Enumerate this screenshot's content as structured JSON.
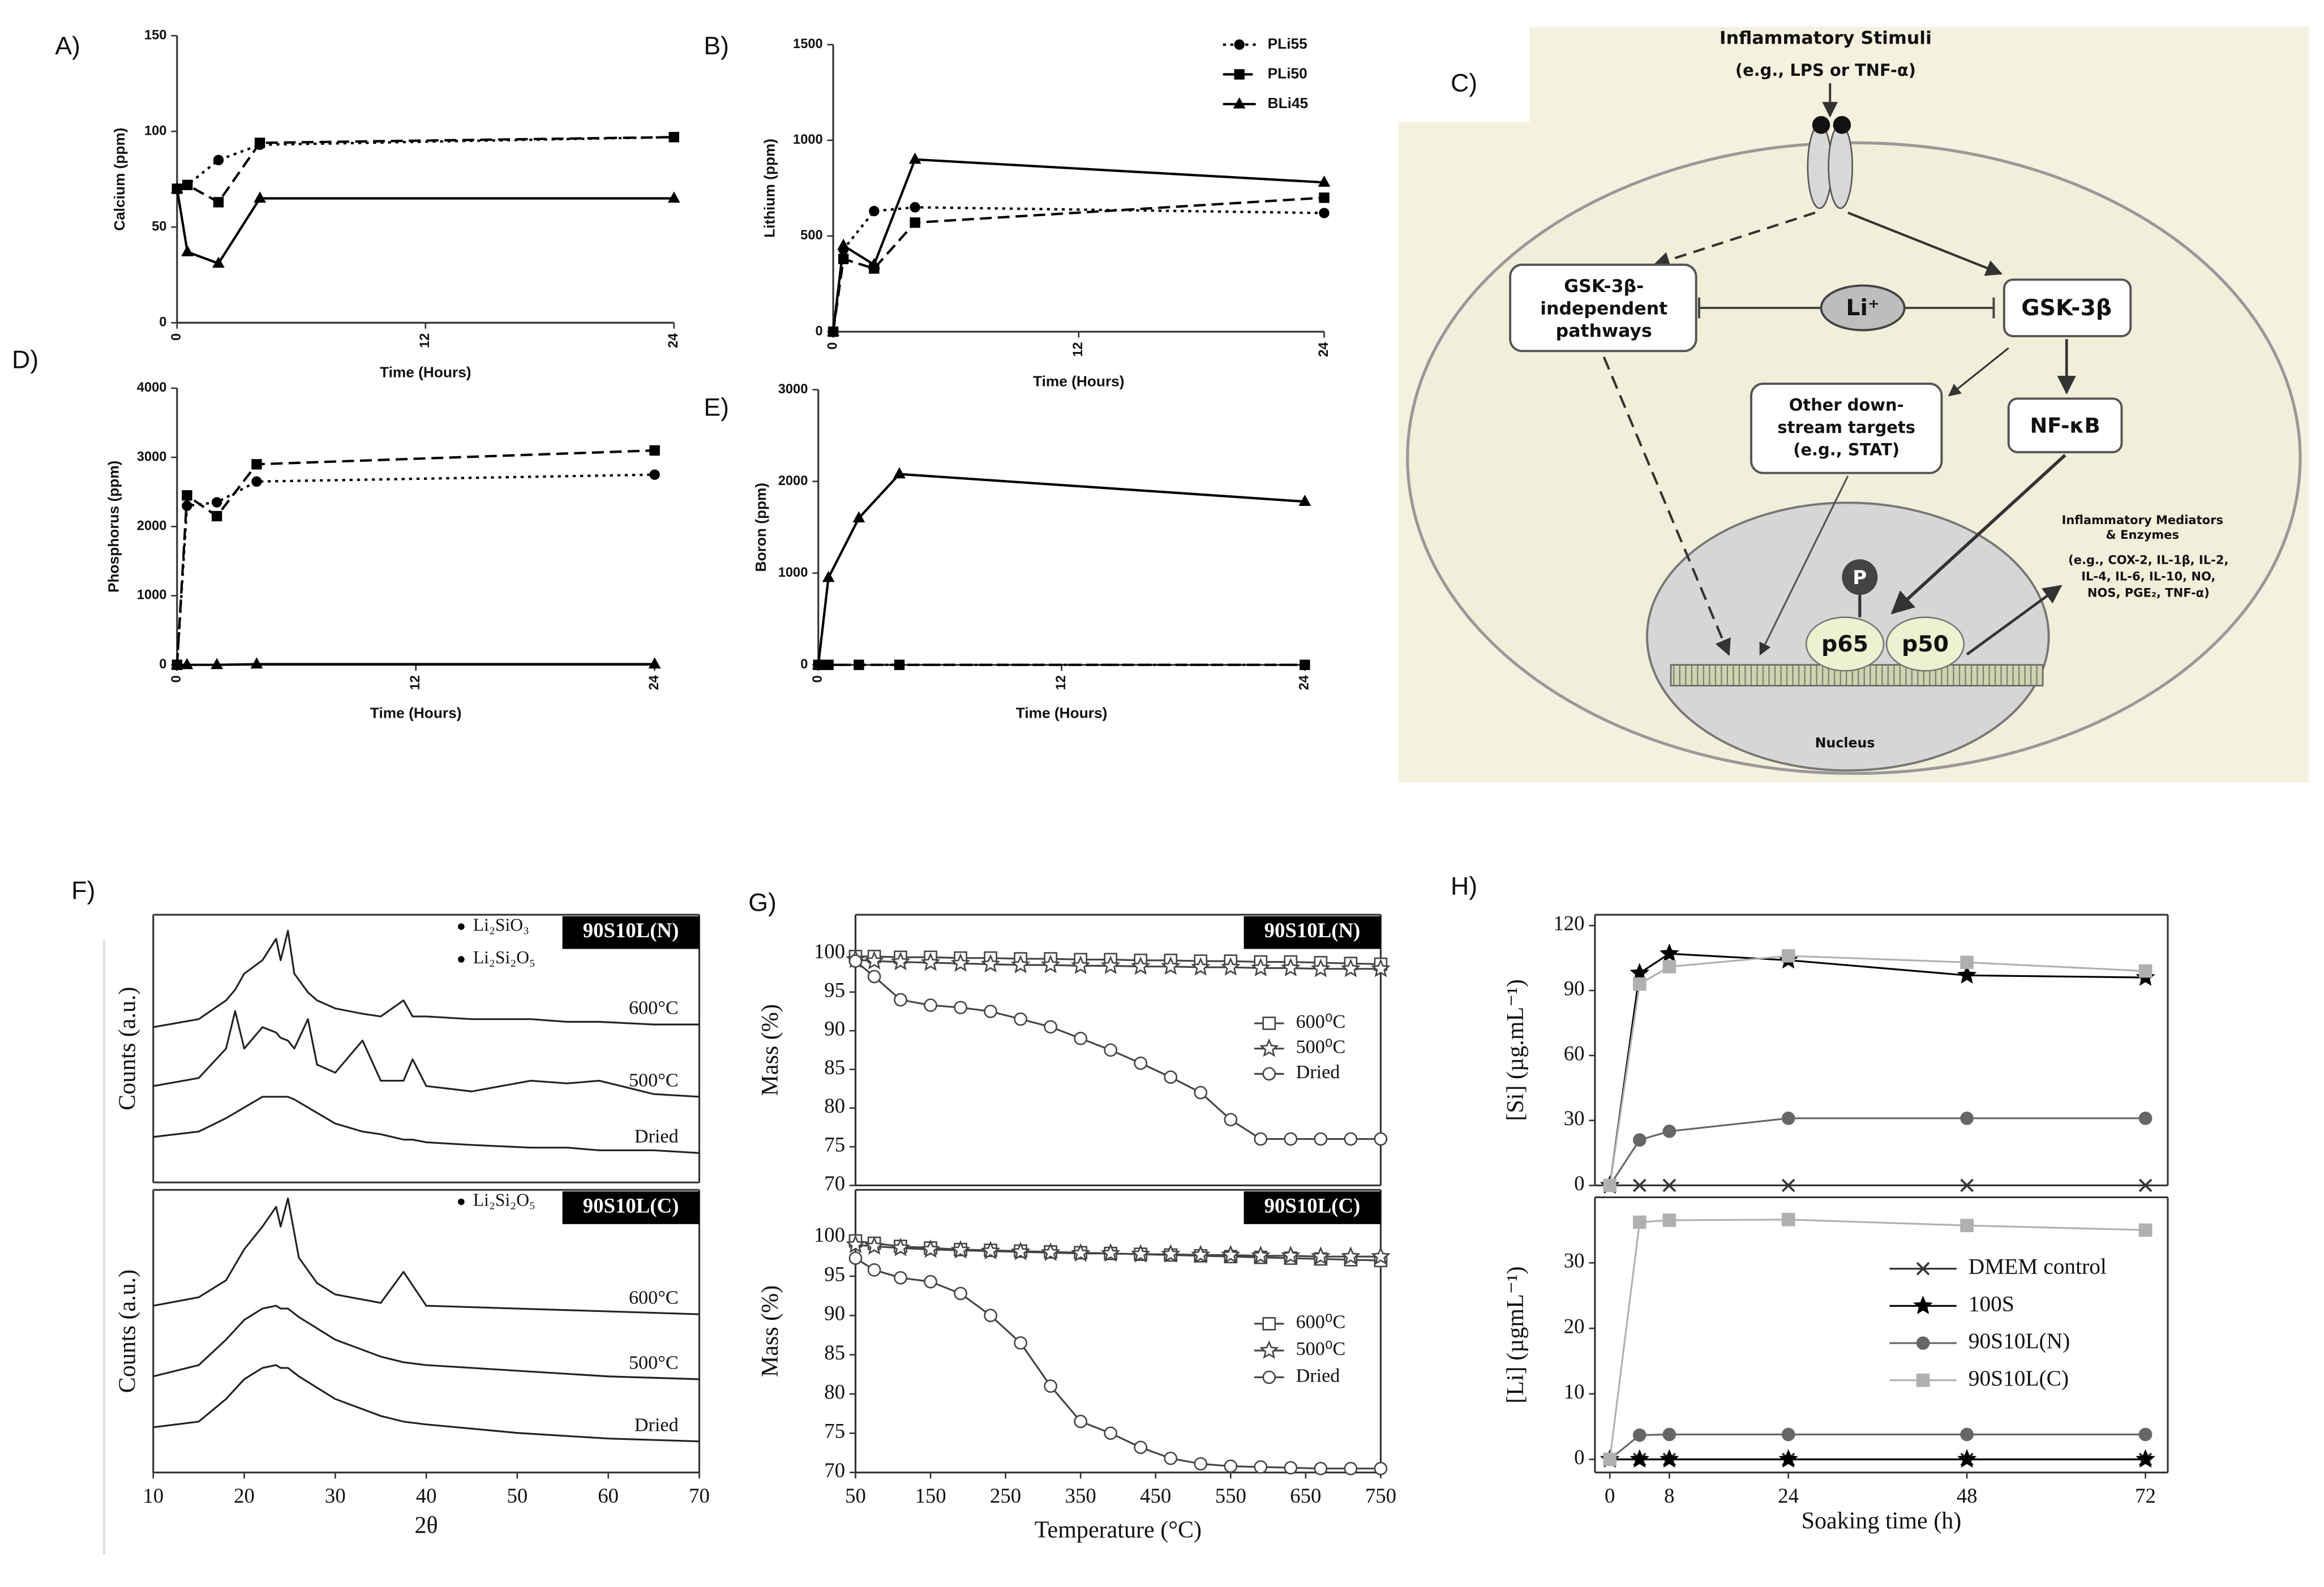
{
  "panel_labels": [
    "A)",
    "B)",
    "C)",
    "D)",
    "E)",
    "F)",
    "G)",
    "H)"
  ],
  "diagram": {
    "stimulus_title": "Inflammatory Stimuli",
    "stimulus_example": "(e.g., LPS or TNF-α)",
    "independent_pathways": [
      "GSK-3β-",
      "independent",
      "pathways"
    ],
    "lithium": "Li⁺",
    "gsk3b": "GSK-3β",
    "other_targets": [
      "Other down-",
      "stream targets",
      "(e.g., STAT)"
    ],
    "nfkb": "NF-κB",
    "mediators": [
      "Inflammatory Mediators",
      "& Enzymes",
      "(e.g., COX-2, IL-1β, IL-2,",
      "IL-4, IL-6, IL-10, NO,",
      "NOS, PGE₂, TNF-α)"
    ],
    "phospho": "P",
    "p65": "p65",
    "p50": "p50",
    "nucleus": "Nucleus"
  },
  "chart_data": [
    {
      "type": "line",
      "y_label": "Calcium (ppm)",
      "x_label": "Time (Hours)",
      "x": [
        0,
        0.5,
        2,
        4,
        24
      ],
      "xlim": [
        0,
        24
      ],
      "xticks": [
        0,
        12,
        24
      ],
      "ylim": [
        0,
        150
      ],
      "yticks": [
        0,
        50,
        100,
        150
      ],
      "series": [
        {
          "name": "PLi55",
          "color": "#000000",
          "line_style": "dotted",
          "marker": "circle",
          "values": [
            70,
            72,
            85,
            93,
            97
          ]
        },
        {
          "name": "PLi50",
          "color": "#000000",
          "line_style": "dashed",
          "marker": "square",
          "values": [
            70,
            72,
            63,
            94,
            97
          ]
        },
        {
          "name": "BLi45",
          "color": "#000000",
          "line_style": "solid",
          "marker": "triangle",
          "values": [
            70,
            37,
            31,
            65,
            65
          ]
        }
      ]
    },
    {
      "type": "line",
      "y_label": "Lithium (ppm)",
      "x_label": "Time (Hours)",
      "legend": "top-right",
      "x": [
        0,
        0.5,
        2,
        4,
        24
      ],
      "xlim": [
        0,
        24
      ],
      "xticks": [
        0,
        12,
        24
      ],
      "ylim": [
        0,
        1500
      ],
      "yticks": [
        0,
        500,
        1000,
        1500
      ],
      "series": [
        {
          "name": "PLi55",
          "color": "#000000",
          "line_style": "dotted",
          "marker": "circle",
          "values": [
            0,
            430,
            630,
            650,
            620
          ]
        },
        {
          "name": "PLi50",
          "color": "#000000",
          "line_style": "dashed",
          "marker": "square",
          "values": [
            0,
            380,
            330,
            570,
            700
          ]
        },
        {
          "name": "BLi45",
          "color": "#000000",
          "line_style": "solid",
          "marker": "triangle",
          "values": [
            0,
            450,
            350,
            900,
            780
          ]
        }
      ]
    },
    {
      "type": "line",
      "y_label": "Phosphorus (ppm)",
      "x_label": "Time (Hours)",
      "x": [
        0,
        0.5,
        2,
        4,
        24
      ],
      "xlim": [
        0,
        24
      ],
      "xticks": [
        0,
        12,
        24
      ],
      "ylim": [
        0,
        4000
      ],
      "yticks": [
        0,
        1000,
        2000,
        3000,
        4000
      ],
      "series": [
        {
          "name": "PLi55",
          "color": "#000000",
          "line_style": "dotted",
          "marker": "circle",
          "values": [
            0,
            2300,
            2350,
            2650,
            2750
          ]
        },
        {
          "name": "PLi50",
          "color": "#000000",
          "line_style": "dashed",
          "marker": "square",
          "values": [
            0,
            2450,
            2150,
            2900,
            3100
          ]
        },
        {
          "name": "BLi45",
          "color": "#000000",
          "line_style": "solid",
          "marker": "triangle",
          "values": [
            0,
            0,
            0,
            10,
            10
          ]
        }
      ]
    },
    {
      "type": "line",
      "y_label": "Boron (ppm)",
      "x_label": "Time (Hours)",
      "x": [
        0,
        0.5,
        2,
        4,
        24
      ],
      "xlim": [
        0,
        24
      ],
      "xticks": [
        0,
        12,
        24
      ],
      "ylim": [
        0,
        3000
      ],
      "yticks": [
        0,
        1000,
        2000,
        3000
      ],
      "series": [
        {
          "name": "PLi55",
          "color": "#000000",
          "line_style": "dotted",
          "marker": "circle",
          "values": [
            0,
            0,
            0,
            0,
            0
          ]
        },
        {
          "name": "PLi50",
          "color": "#000000",
          "line_style": "dashed",
          "marker": "square",
          "values": [
            0,
            0,
            0,
            0,
            0
          ]
        },
        {
          "name": "BLi45",
          "color": "#000000",
          "line_style": "solid",
          "marker": "triangle",
          "values": [
            0,
            950,
            1600,
            2080,
            1780
          ]
        }
      ]
    },
    {
      "type": "line",
      "y_label": "Counts (a.u.)",
      "tag": "90S10L(N)",
      "phase_legend": [
        "Li₂SiO₃",
        "Li₂Si₂O₅"
      ],
      "legend": "inline",
      "x": [
        10,
        15,
        18,
        19,
        20,
        22,
        23.5,
        24,
        24.8,
        25.5,
        27,
        28,
        30,
        33,
        35,
        37.5,
        38.5,
        40,
        45,
        51.5,
        55.5,
        59,
        65,
        70
      ],
      "xlim": [
        10,
        70
      ],
      "ylim": [
        0,
        100
      ],
      "series": [
        {
          "name": "600°C",
          "color": "#222222",
          "values": [
            58,
            61,
            68,
            72,
            78,
            83,
            91,
            83,
            94,
            78,
            71,
            68,
            65,
            63,
            62,
            68,
            62,
            62,
            61,
            61,
            60,
            60,
            59,
            59
          ]
        },
        {
          "name": "500°C",
          "color": "#222222",
          "values": [
            36,
            39,
            50,
            64,
            50,
            58,
            56,
            54,
            53,
            50,
            61,
            44,
            41,
            53,
            38,
            38,
            46,
            36,
            34,
            38,
            37,
            38,
            33,
            32
          ]
        },
        {
          "name": "Dried",
          "color": "#222222",
          "values": [
            17,
            19,
            24,
            26,
            28,
            32,
            32,
            32,
            32,
            31,
            28,
            26,
            22,
            19,
            18,
            16,
            16,
            15,
            14,
            13,
            13,
            12,
            12,
            11
          ]
        }
      ]
    },
    {
      "type": "line",
      "y_label": "Counts (a.u.)",
      "x_label": "2θ",
      "tag": "90S10L(C)",
      "phase_legend": [
        "Li₂Si₂O₅"
      ],
      "legend": "inline",
      "x": [
        10,
        15,
        18,
        20,
        22,
        23.5,
        24,
        24.8,
        26,
        28,
        30,
        35,
        37.5,
        40,
        50,
        60,
        70
      ],
      "xlim": [
        10,
        70
      ],
      "xticks": [
        10,
        20,
        30,
        40,
        50,
        60,
        70
      ],
      "ylim": [
        0,
        100
      ],
      "series": [
        {
          "name": "600°C",
          "color": "#222222",
          "values": [
            59,
            62,
            68,
            79,
            87,
            94,
            87,
            97,
            76,
            67,
            63,
            60,
            71,
            59,
            58,
            57,
            56
          ]
        },
        {
          "name": "500°C",
          "color": "#222222",
          "values": [
            34,
            38,
            47,
            54,
            58,
            59,
            58,
            58,
            55,
            51,
            47,
            41,
            39,
            38,
            36,
            34,
            33
          ]
        },
        {
          "name": "Dried",
          "color": "#222222",
          "values": [
            16,
            18,
            26,
            33,
            37,
            38,
            37,
            37,
            34,
            30,
            26,
            20,
            18,
            17,
            14,
            12,
            11
          ]
        }
      ]
    },
    {
      "type": "line",
      "y_label": "Mass (%)",
      "tag": "90S10L(N)",
      "legend": "right",
      "hollow_markers": true,
      "x": [
        50,
        75,
        110,
        150,
        190,
        230,
        270,
        310,
        350,
        390,
        430,
        470,
        510,
        550,
        590,
        630,
        670,
        710,
        750
      ],
      "xlim": [
        50,
        750
      ],
      "ylim": [
        70,
        105
      ],
      "yticks": [
        70,
        75,
        80,
        85,
        90,
        95,
        100
      ],
      "series": [
        {
          "name": "600⁰C",
          "color": "#444444",
          "marker": "square",
          "values": [
            99.6,
            99.6,
            99.5,
            99.5,
            99.4,
            99.4,
            99.3,
            99.3,
            99.2,
            99.2,
            99.1,
            99.1,
            99.0,
            99.0,
            98.9,
            98.9,
            98.8,
            98.7,
            98.6
          ]
        },
        {
          "name": "500⁰C",
          "color": "#444444",
          "marker": "star",
          "values": [
            99.2,
            99.0,
            98.9,
            98.8,
            98.7,
            98.6,
            98.5,
            98.5,
            98.4,
            98.4,
            98.3,
            98.3,
            98.2,
            98.2,
            98.1,
            98.1,
            98.0,
            98.0,
            98.0
          ]
        },
        {
          "name": "Dried",
          "color": "#444444",
          "marker": "circle",
          "values": [
            99,
            97,
            94,
            93.3,
            93,
            92.5,
            91.5,
            90.5,
            89,
            87.5,
            85.8,
            84,
            82,
            78.5,
            76,
            76,
            76,
            76,
            76
          ]
        }
      ]
    },
    {
      "type": "line",
      "y_label": "Mass (%)",
      "x_label": "Temperature (°C)",
      "tag": "90S10L(C)",
      "legend": "right",
      "hollow_markers": true,
      "x": [
        50,
        75,
        110,
        150,
        190,
        230,
        270,
        310,
        350,
        390,
        430,
        470,
        510,
        550,
        590,
        630,
        670,
        710,
        750
      ],
      "xlim": [
        50,
        750
      ],
      "xticks": [
        50,
        150,
        250,
        350,
        450,
        550,
        650,
        750
      ],
      "ylim": [
        70,
        106
      ],
      "yticks": [
        70,
        75,
        80,
        85,
        90,
        95,
        100
      ],
      "series": [
        {
          "name": "600⁰C",
          "color": "#444444",
          "marker": "square",
          "values": [
            99.5,
            99.2,
            98.8,
            98.6,
            98.4,
            98.3,
            98.2,
            98.1,
            98.0,
            97.9,
            97.8,
            97.7,
            97.6,
            97.5,
            97.4,
            97.3,
            97.2,
            97.1,
            97.0
          ]
        },
        {
          "name": "500⁰C",
          "color": "#444444",
          "marker": "star",
          "values": [
            99.0,
            98.8,
            98.6,
            98.4,
            98.3,
            98.2,
            98.1,
            98.0,
            97.9,
            97.9,
            97.8,
            97.8,
            97.7,
            97.7,
            97.6,
            97.6,
            97.5,
            97.5,
            97.5
          ]
        },
        {
          "name": "Dried",
          "color": "#444444",
          "marker": "circle",
          "values": [
            97.3,
            95.8,
            94.8,
            94.3,
            92.8,
            90,
            86.5,
            81,
            76.5,
            75,
            73.2,
            71.8,
            71.1,
            70.8,
            70.7,
            70.6,
            70.5,
            70.5,
            70.5
          ]
        }
      ]
    },
    {
      "type": "line",
      "y_label": "[Si] (µg.mL⁻¹)",
      "x": [
        0,
        4,
        8,
        24,
        48,
        72
      ],
      "xlim": [
        -2,
        75
      ],
      "ylim": [
        0,
        125
      ],
      "yticks": [
        0,
        30,
        60,
        90,
        120
      ],
      "series": [
        {
          "name": "DMEM control",
          "color": "#333333",
          "marker": "cross",
          "values": [
            0,
            0,
            0,
            0,
            0,
            0
          ]
        },
        {
          "name": "100S",
          "color": "#000000",
          "marker": "star",
          "values": [
            0,
            98,
            107,
            104,
            97,
            96
          ]
        },
        {
          "name": "90S10L(N)",
          "color": "#666666",
          "marker": "circle",
          "values": [
            0,
            21,
            25,
            31,
            31,
            31
          ]
        },
        {
          "name": "90S10L(C)",
          "color": "#b0b0b0",
          "marker": "square",
          "values": [
            0,
            93,
            101,
            106,
            103,
            99
          ]
        }
      ]
    },
    {
      "type": "line",
      "y_label": "[Li] (µgmL⁻¹)",
      "x_label": "Soaking time (h)",
      "legend": "lower-right",
      "x": [
        0,
        4,
        8,
        24,
        48,
        72
      ],
      "xlim": [
        -2,
        75
      ],
      "xticks": [
        0,
        8,
        24,
        48,
        72
      ],
      "ylim": [
        -2,
        40
      ],
      "yticks": [
        0,
        10,
        20,
        30
      ],
      "series": [
        {
          "name": "DMEM control",
          "color": "#333333",
          "marker": "cross",
          "values": [
            0,
            0,
            0,
            0,
            0,
            0
          ]
        },
        {
          "name": "100S",
          "color": "#000000",
          "marker": "star",
          "values": [
            0,
            0,
            0,
            0,
            0,
            0
          ]
        },
        {
          "name": "90S10L(N)",
          "color": "#666666",
          "marker": "circle",
          "values": [
            0,
            3.7,
            3.8,
            3.8,
            3.8,
            3.8
          ]
        },
        {
          "name": "90S10L(C)",
          "color": "#b0b0b0",
          "marker": "square",
          "values": [
            0,
            36.2,
            36.5,
            36.6,
            35.7,
            35
          ]
        }
      ]
    }
  ]
}
